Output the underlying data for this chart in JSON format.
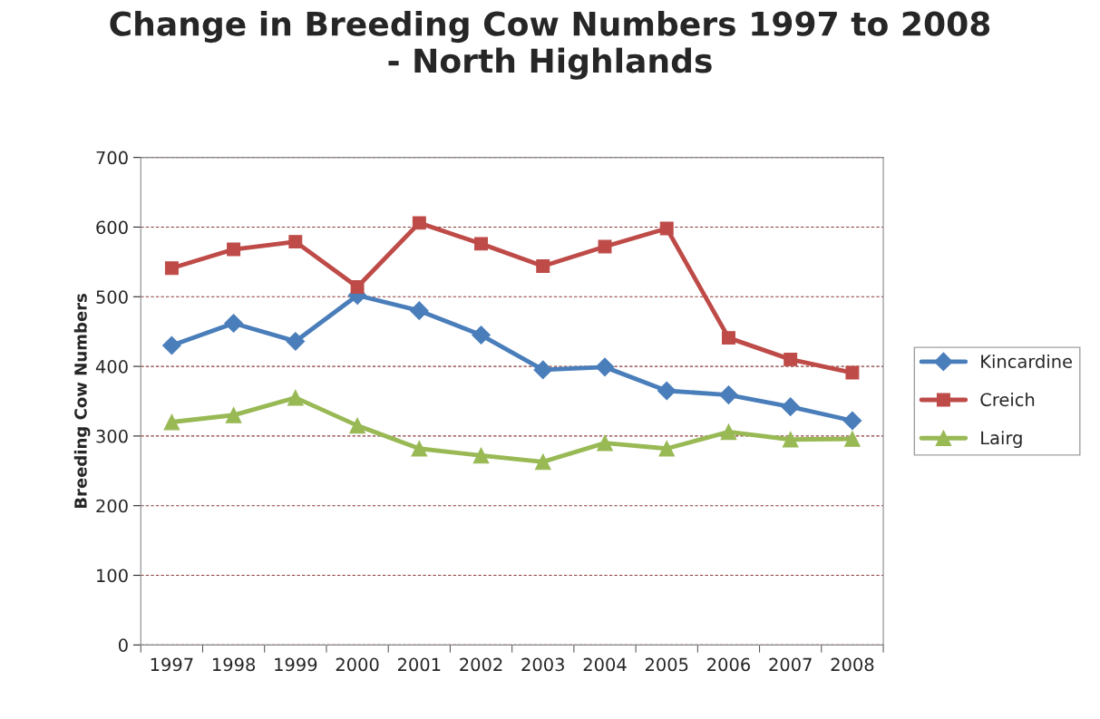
{
  "chart_data": {
    "type": "line",
    "title": "Change in Breeding Cow Numbers 1997 to 2008\n- North Highlands",
    "ylabel": "Breeding Cow Numbers",
    "categories": [
      "1997",
      "1998",
      "1999",
      "2000",
      "2001",
      "2002",
      "2003",
      "2004",
      "2005",
      "2006",
      "2007",
      "2008"
    ],
    "series": [
      {
        "name": "Kincardine",
        "color": "#4a7ebb",
        "marker": "diamond",
        "values": [
          430,
          462,
          436,
          502,
          480,
          445,
          395,
          399,
          365,
          359,
          342,
          322
        ]
      },
      {
        "name": "Creich",
        "color": "#be4b48",
        "marker": "square",
        "values": [
          541,
          568,
          579,
          514,
          606,
          576,
          544,
          572,
          598,
          441,
          410,
          391
        ]
      },
      {
        "name": "Lairg",
        "color": "#98b954",
        "marker": "triangle",
        "values": [
          320,
          330,
          355,
          315,
          282,
          272,
          263,
          290,
          282,
          306,
          295,
          296
        ]
      }
    ],
    "ylim": [
      0,
      700
    ],
    "yticks": [
      0,
      100,
      200,
      300,
      400,
      500,
      600,
      700
    ],
    "grid": "y",
    "legend": "right",
    "line_style": "solid"
  }
}
